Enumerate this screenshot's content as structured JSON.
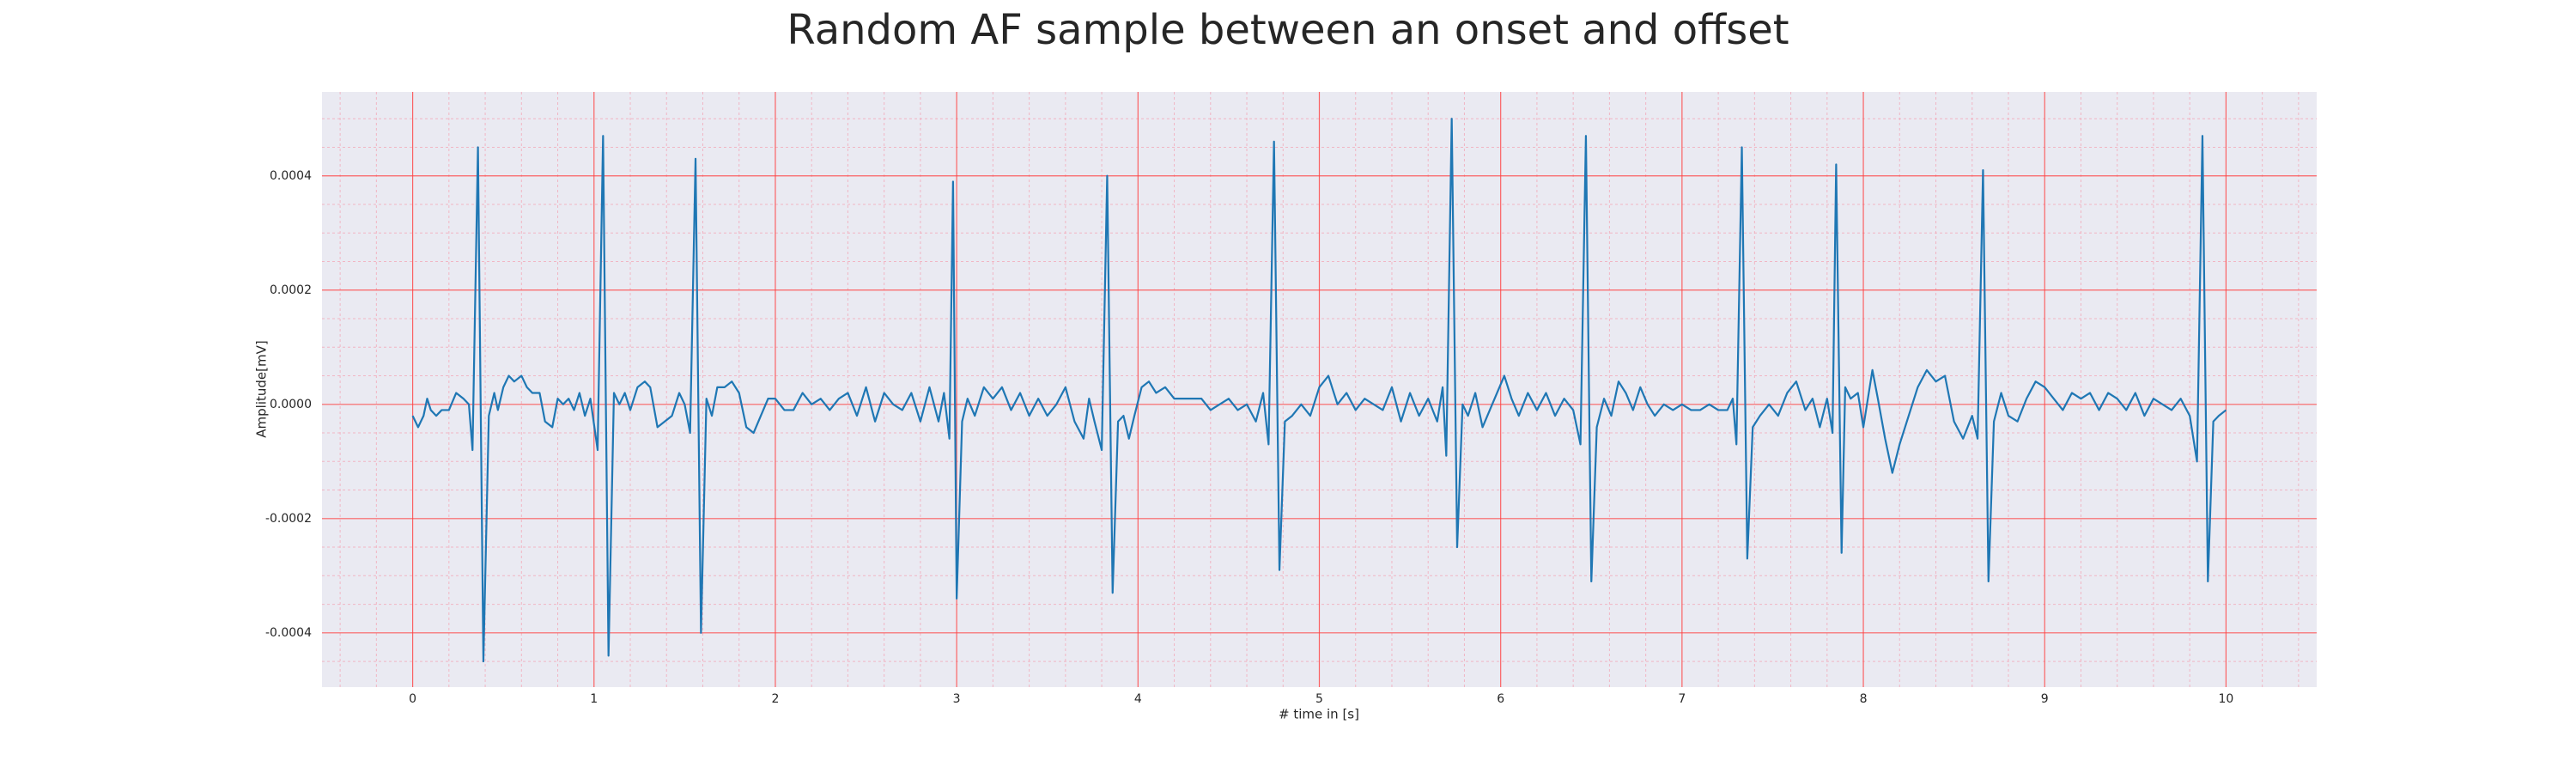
{
  "chart_data": {
    "type": "line",
    "title": "Random AF sample between an onset and offset",
    "xlabel": "# time in [s]",
    "ylabel": "Amplitude[mV]",
    "color": "#1f77b4",
    "grid": true,
    "minor_grid": true,
    "xlim": [
      -0.5,
      10.5
    ],
    "ylim": [
      -0.000495,
      0.000547
    ],
    "xticks": [
      0,
      1,
      2,
      3,
      4,
      5,
      6,
      7,
      8,
      9,
      10
    ],
    "yticks": [
      {
        "value": -0.0004,
        "label": "-0.0004"
      },
      -0.0002,
      {
        "value": 0,
        "label": "0.0000"
      },
      0.0002,
      0.0004
    ],
    "xminorticks": [
      -0.4,
      -0.2,
      0.2,
      0.4,
      0.6,
      0.8,
      1.2,
      1.4,
      1.6,
      1.8,
      2.2,
      2.4,
      2.6,
      2.8,
      3.2,
      3.4,
      3.6,
      3.8,
      4.2,
      4.4,
      4.6,
      4.8,
      5.2,
      5.4,
      5.6,
      5.8,
      6.2,
      6.4,
      6.6,
      6.8,
      7.2,
      7.4,
      7.6,
      7.8,
      8.2,
      8.4,
      8.6,
      8.8,
      9.2,
      9.4,
      9.6,
      9.8,
      10.2,
      10.4
    ],
    "yminorticks": [
      -0.00045,
      -0.00035,
      -0.0003,
      -0.00025,
      -0.00015,
      -0.0001,
      -5e-05,
      5e-05,
      0.0001,
      0.00015,
      0.00025,
      0.0003,
      0.00035,
      0.00045,
      0.0005
    ],
    "x": [
      0,
      0.03,
      0.06,
      0.08,
      0.1,
      0.13,
      0.16,
      0.2,
      0.24,
      0.28,
      0.31,
      0.33,
      0.36,
      0.39,
      0.42,
      0.45,
      0.47,
      0.5,
      0.53,
      0.56,
      0.6,
      0.63,
      0.66,
      0.7,
      0.73,
      0.77,
      0.8,
      0.83,
      0.86,
      0.89,
      0.92,
      0.95,
      0.98,
      1.02,
      1.05,
      1.08,
      1.11,
      1.14,
      1.17,
      1.2,
      1.24,
      1.28,
      1.31,
      1.35,
      1.39,
      1.43,
      1.47,
      1.5,
      1.53,
      1.56,
      1.59,
      1.62,
      1.65,
      1.68,
      1.72,
      1.76,
      1.8,
      1.84,
      1.88,
      1.92,
      1.96,
      2,
      2.05,
      2.1,
      2.15,
      2.2,
      2.25,
      2.3,
      2.35,
      2.4,
      2.45,
      2.5,
      2.55,
      2.6,
      2.65,
      2.7,
      2.75,
      2.8,
      2.85,
      2.9,
      2.93,
      2.96,
      2.98,
      3,
      3.03,
      3.06,
      3.1,
      3.15,
      3.2,
      3.25,
      3.3,
      3.35,
      3.4,
      3.45,
      3.5,
      3.55,
      3.6,
      3.65,
      3.7,
      3.73,
      3.76,
      3.8,
      3.83,
      3.86,
      3.89,
      3.92,
      3.95,
      3.98,
      4.02,
      4.06,
      4.1,
      4.15,
      4.2,
      4.25,
      4.3,
      4.35,
      4.4,
      4.45,
      4.5,
      4.55,
      4.6,
      4.65,
      4.69,
      4.72,
      4.75,
      4.78,
      4.81,
      4.85,
      4.9,
      4.95,
      5,
      5.05,
      5.1,
      5.15,
      5.2,
      5.25,
      5.3,
      5.35,
      5.4,
      5.45,
      5.5,
      5.55,
      5.6,
      5.65,
      5.68,
      5.7,
      5.73,
      5.76,
      5.79,
      5.82,
      5.86,
      5.9,
      5.94,
      5.98,
      6.02,
      6.06,
      6.1,
      6.15,
      6.2,
      6.25,
      6.3,
      6.35,
      6.4,
      6.44,
      6.47,
      6.5,
      6.53,
      6.57,
      6.61,
      6.65,
      6.69,
      6.73,
      6.77,
      6.81,
      6.85,
      6.9,
      6.95,
      7,
      7.05,
      7.1,
      7.15,
      7.2,
      7.25,
      7.28,
      7.3,
      7.33,
      7.36,
      7.39,
      7.43,
      7.48,
      7.53,
      7.58,
      7.63,
      7.68,
      7.72,
      7.76,
      7.8,
      7.83,
      7.85,
      7.88,
      7.9,
      7.93,
      7.97,
      8,
      8.05,
      8.08,
      8.12,
      8.16,
      8.2,
      8.25,
      8.3,
      8.35,
      8.4,
      8.45,
      8.5,
      8.55,
      8.6,
      8.63,
      8.66,
      8.69,
      8.72,
      8.76,
      8.8,
      8.85,
      8.9,
      8.95,
      9,
      9.05,
      9.1,
      9.15,
      9.2,
      9.25,
      9.3,
      9.35,
      9.4,
      9.45,
      9.5,
      9.55,
      9.6,
      9.65,
      9.7,
      9.75,
      9.8,
      9.84,
      9.87,
      9.9,
      9.93,
      9.96,
      10
    ],
    "values": [
      -2e-05,
      -4e-05,
      -2e-05,
      1e-05,
      -1e-05,
      -2e-05,
      -1e-05,
      -1e-05,
      2e-05,
      1e-05,
      0,
      -8e-05,
      0.00045,
      -0.00045,
      -2e-05,
      2e-05,
      -1e-05,
      3e-05,
      5e-05,
      4e-05,
      5e-05,
      3e-05,
      2e-05,
      2e-05,
      -3e-05,
      -4e-05,
      1e-05,
      0,
      1e-05,
      -1e-05,
      2e-05,
      -2e-05,
      1e-05,
      -8e-05,
      0.00047,
      -0.00044,
      2e-05,
      0,
      2e-05,
      -1e-05,
      3e-05,
      4e-05,
      3e-05,
      -4e-05,
      -3e-05,
      -2e-05,
      2e-05,
      0,
      -5e-05,
      0.00043,
      -0.0004,
      1e-05,
      -2e-05,
      3e-05,
      3e-05,
      4e-05,
      2e-05,
      -4e-05,
      -5e-05,
      -2e-05,
      1e-05,
      1e-05,
      -1e-05,
      -1e-05,
      2e-05,
      0,
      1e-05,
      -1e-05,
      1e-05,
      2e-05,
      -2e-05,
      3e-05,
      -3e-05,
      2e-05,
      0,
      -1e-05,
      2e-05,
      -3e-05,
      3e-05,
      -3e-05,
      2e-05,
      -6e-05,
      0.00039,
      -0.00034,
      -3e-05,
      1e-05,
      -2e-05,
      3e-05,
      1e-05,
      3e-05,
      -1e-05,
      2e-05,
      -2e-05,
      1e-05,
      -2e-05,
      0,
      3e-05,
      -3e-05,
      -6e-05,
      1e-05,
      -3e-05,
      -8e-05,
      0.0004,
      -0.00033,
      -3e-05,
      -2e-05,
      -6e-05,
      -2e-05,
      3e-05,
      4e-05,
      2e-05,
      3e-05,
      1e-05,
      1e-05,
      1e-05,
      1e-05,
      -1e-05,
      0,
      1e-05,
      -1e-05,
      0,
      -3e-05,
      2e-05,
      -7e-05,
      0.00046,
      -0.00029,
      -3e-05,
      -2e-05,
      0,
      -2e-05,
      3e-05,
      5e-05,
      0,
      2e-05,
      -1e-05,
      1e-05,
      0,
      -1e-05,
      3e-05,
      -3e-05,
      2e-05,
      -2e-05,
      1e-05,
      -3e-05,
      3e-05,
      -9e-05,
      0.0005,
      -0.00025,
      0,
      -2e-05,
      2e-05,
      -4e-05,
      -1e-05,
      2e-05,
      5e-05,
      1e-05,
      -2e-05,
      2e-05,
      -1e-05,
      2e-05,
      -2e-05,
      1e-05,
      -1e-05,
      -7e-05,
      0.00047,
      -0.00031,
      -4e-05,
      1e-05,
      -2e-05,
      4e-05,
      2e-05,
      -1e-05,
      3e-05,
      0,
      -2e-05,
      0,
      -1e-05,
      0,
      -1e-05,
      -1e-05,
      0,
      -1e-05,
      -1e-05,
      1e-05,
      -7e-05,
      0.00045,
      -0.00027,
      -4e-05,
      -2e-05,
      0,
      -2e-05,
      2e-05,
      4e-05,
      -1e-05,
      1e-05,
      -4e-05,
      1e-05,
      -5e-05,
      0.00042,
      -0.00026,
      3e-05,
      1e-05,
      2e-05,
      -4e-05,
      6e-05,
      1e-05,
      -6e-05,
      -0.00012,
      -7e-05,
      -2e-05,
      3e-05,
      6e-05,
      4e-05,
      5e-05,
      -3e-05,
      -6e-05,
      -2e-05,
      -6e-05,
      0.00041,
      -0.00031,
      -3e-05,
      2e-05,
      -2e-05,
      -3e-05,
      1e-05,
      4e-05,
      3e-05,
      1e-05,
      -1e-05,
      2e-05,
      1e-05,
      2e-05,
      -1e-05,
      2e-05,
      1e-05,
      -1e-05,
      2e-05,
      -2e-05,
      1e-05,
      0,
      -1e-05,
      1e-05,
      -2e-05,
      -0.0001,
      0.00047,
      -0.00031,
      -3e-05,
      -2e-05,
      -1e-05
    ]
  }
}
